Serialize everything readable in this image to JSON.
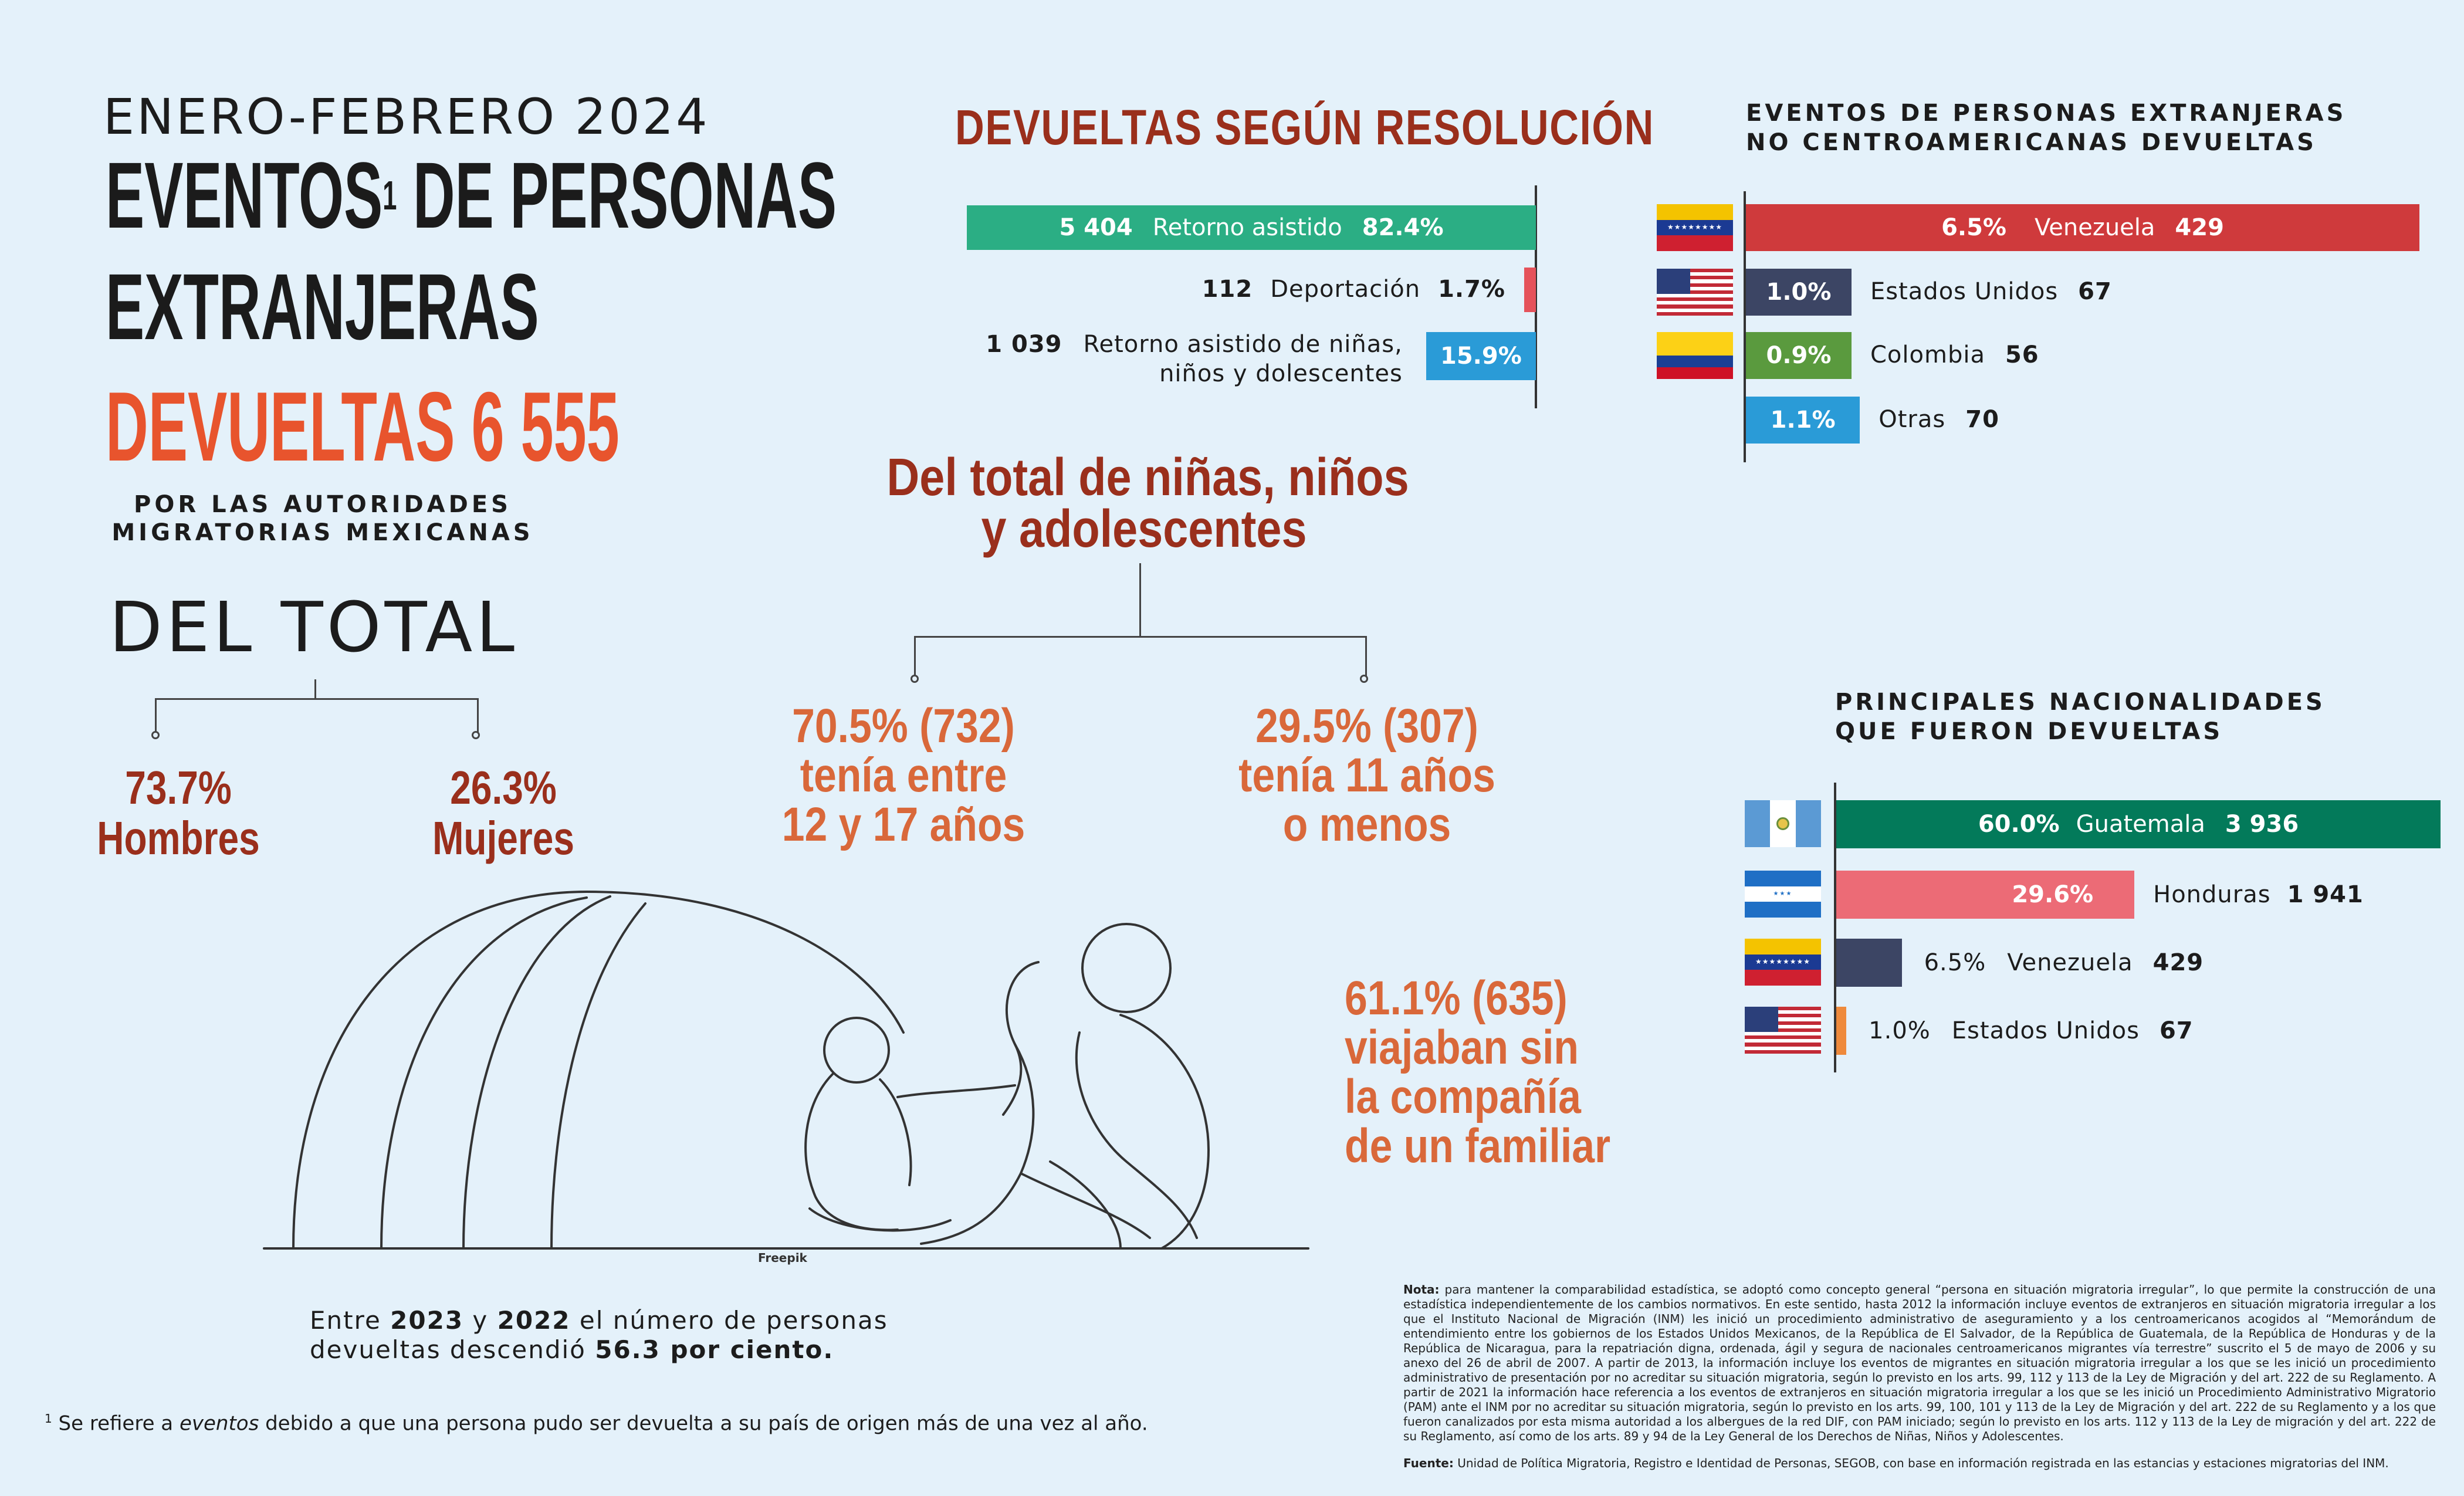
{
  "header": {
    "period": "ENERO-FEBRERO 2024",
    "title_line1": "EVENTOS",
    "title_sup": "1",
    "title_line1b": " DE PERSONAS",
    "title_line2": "EXTRANJERAS",
    "title_line3": "DEVUELTAS 6 555",
    "subtitle_line1": "POR LAS AUTORIDADES",
    "subtitle_line2": "MIGRATORIAS MEXICANAS"
  },
  "del_total": {
    "title": "DEL TOTAL",
    "men_pct": "73.7%",
    "men_label": "Hombres",
    "women_pct": "26.3%",
    "women_label": "Mujeres"
  },
  "resolucion": {
    "title": "DEVUELTAS SEGÚN RESOLUCIÓN",
    "colors": {
      "asistido": "#2bae84",
      "deportacion": "#e5525a",
      "nna": "#2a9bd7"
    }
  },
  "minors": {
    "title_line1": "Del total de niñas, niños",
    "title_line2": "y adolescentes",
    "left_line1": "70.5% (732)",
    "left_line2": "tenía entre",
    "left_line3": "12 y 17 años",
    "right_line1": "29.5% (307)",
    "right_line2": "tenía 11 años",
    "right_line3": "o menos",
    "alone_line1": "61.1% (635)",
    "alone_line2": "viajaban sin",
    "alone_line3": "la compañía",
    "alone_line4": "de un familiar"
  },
  "illustration": {
    "credit": "Freepik",
    "icon": "family-tent-illustration"
  },
  "no_centro": {
    "title_line1": "EVENTOS DE PERSONAS EXTRANJERAS",
    "title_line2": "NO CENTROAMERICANAS DEVUELTAS"
  },
  "principales": {
    "title_line1": "PRINCIPALES NACIONALIDADES",
    "title_line2": "QUE FUERON DEVUELTAS"
  },
  "comparison": {
    "t1": "Entre ",
    "y1": "2023",
    "t2": " y ",
    "y2": "2022",
    "t3": " el número de personas",
    "t4": "devueltas descendió ",
    "pct": "56.3 por ciento."
  },
  "footnote": {
    "sup": "1",
    "t1": " Se refiere a ",
    "em": "eventos",
    "t2": " debido a que una persona pudo ser devuelta a su país de origen más de una vez al año."
  },
  "notes": {
    "nota_label": "Nota:",
    "nota_text": " para mantener la comparabilidad estadística, se adoptó como concepto general “persona en situación migratoria irregular”, lo que permite la construcción de una estadística independientemente de los cambios normativos. En este sentido, hasta 2012 la información incluye eventos de extranjeros en situación migratoria irregular a los que el Instituto Nacional de Migración (INM) les inició un procedimiento administrativo de aseguramiento y a los centroamericanos acogidos al “Memorándum de entendimiento entre los gobiernos de los Estados Unidos Mexicanos, de la República de El Salvador, de la República de Guatemala, de la República de Honduras y de la República de Nicaragua, para la repatriación digna, ordenada, ágil y segura de nacionales centroamericanos migrantes vía terrestre” suscrito el 5 de mayo de 2006 y su anexo del 26 de abril de 2007. A partir de 2013, la información incluye los eventos de migrantes en situación migratoria irregular a los que se les inició un procedimiento administrativo de presentación por no acreditar su situación migratoria, según lo previsto en los arts. 99, 112 y 113 de la Ley de Migración y del art. 222 de su Reglamento. A partir de 2021 la información hace referencia a los eventos de extranjeros en situación migratoria irregular a los que se les inició un Procedimiento Administrativo Migratorio (PAM) ante el INM por no acreditar su situación migratoria, según lo previsto en los arts. 99, 100, 101 y 113 de la Ley de Migración y del art. 222 de su Reglamento y a los que fueron canalizados por esta misma autoridad a los albergues de la red DIF, con PAM iniciado; según lo previsto en los arts. 112 y 113 de la Ley de migración y del art. 222 de su Reglamento, así como de los arts. 89 y 94 de la Ley General de los Derechos de Niñas, Niños y Adolescentes.",
    "fuente_label": "Fuente:",
    "fuente_text": " Unidad de Política Migratoria, Registro e Identidad de Personas, SEGOB, con base en información registrada en las estancias y estaciones migratorias del INM."
  },
  "chart_data": [
    {
      "type": "bar",
      "orientation": "horizontal",
      "title": "DEVUELTAS SEGÚN RESOLUCIÓN",
      "categories": [
        "Retorno asistido",
        "Deportación",
        "Retorno asistido de niñas, niños y dolescentes"
      ],
      "values": [
        5404,
        112,
        1039
      ],
      "value_labels": [
        "5 404",
        "112",
        "1 039"
      ],
      "percent_labels": [
        "82.4%",
        "1.7%",
        "15.9%"
      ],
      "percents": [
        82.4,
        1.7,
        15.9
      ],
      "bar_direction": "right-to-left"
    },
    {
      "type": "bar",
      "orientation": "horizontal",
      "title": "EVENTOS DE PERSONAS EXTRANJERAS NO CENTROAMERICANAS DEVUELTAS",
      "categories": [
        "Venezuela",
        "Estados Unidos",
        "Colombia",
        "Otras"
      ],
      "values": [
        429,
        67,
        56,
        70
      ],
      "value_labels": [
        "429",
        "67",
        "56",
        "70"
      ],
      "percent_labels": [
        "6.5%",
        "1.0%",
        "0.9%",
        "1.1%"
      ],
      "percents": [
        6.5,
        1.0,
        0.9,
        1.1
      ],
      "colors": [
        "#cf3a3c",
        "#3c4564",
        "#5a9a3e",
        "#2a9bd7"
      ],
      "flags": [
        "venezuela-flag",
        "usa-flag",
        "colombia-flag",
        ""
      ]
    },
    {
      "type": "bar",
      "orientation": "horizontal",
      "title": "PRINCIPALES NACIONALIDADES QUE FUERON DEVUELTAS",
      "categories": [
        "Guatemala",
        "Honduras",
        "Venezuela",
        "Estados Unidos"
      ],
      "values": [
        3936,
        1941,
        429,
        67
      ],
      "value_labels": [
        "3 936",
        "1 941",
        "429",
        "67"
      ],
      "percent_labels": [
        "60.0%",
        "29.6%",
        "6.5%",
        "1.0%"
      ],
      "percents": [
        60.0,
        29.6,
        6.5,
        1.0
      ],
      "colors": [
        "#037a5a",
        "#ec6b76",
        "#3c4564",
        "#ef8a3c"
      ],
      "flags": [
        "guatemala-flag",
        "honduras-flag",
        "venezuela-flag",
        "usa-flag"
      ]
    }
  ]
}
